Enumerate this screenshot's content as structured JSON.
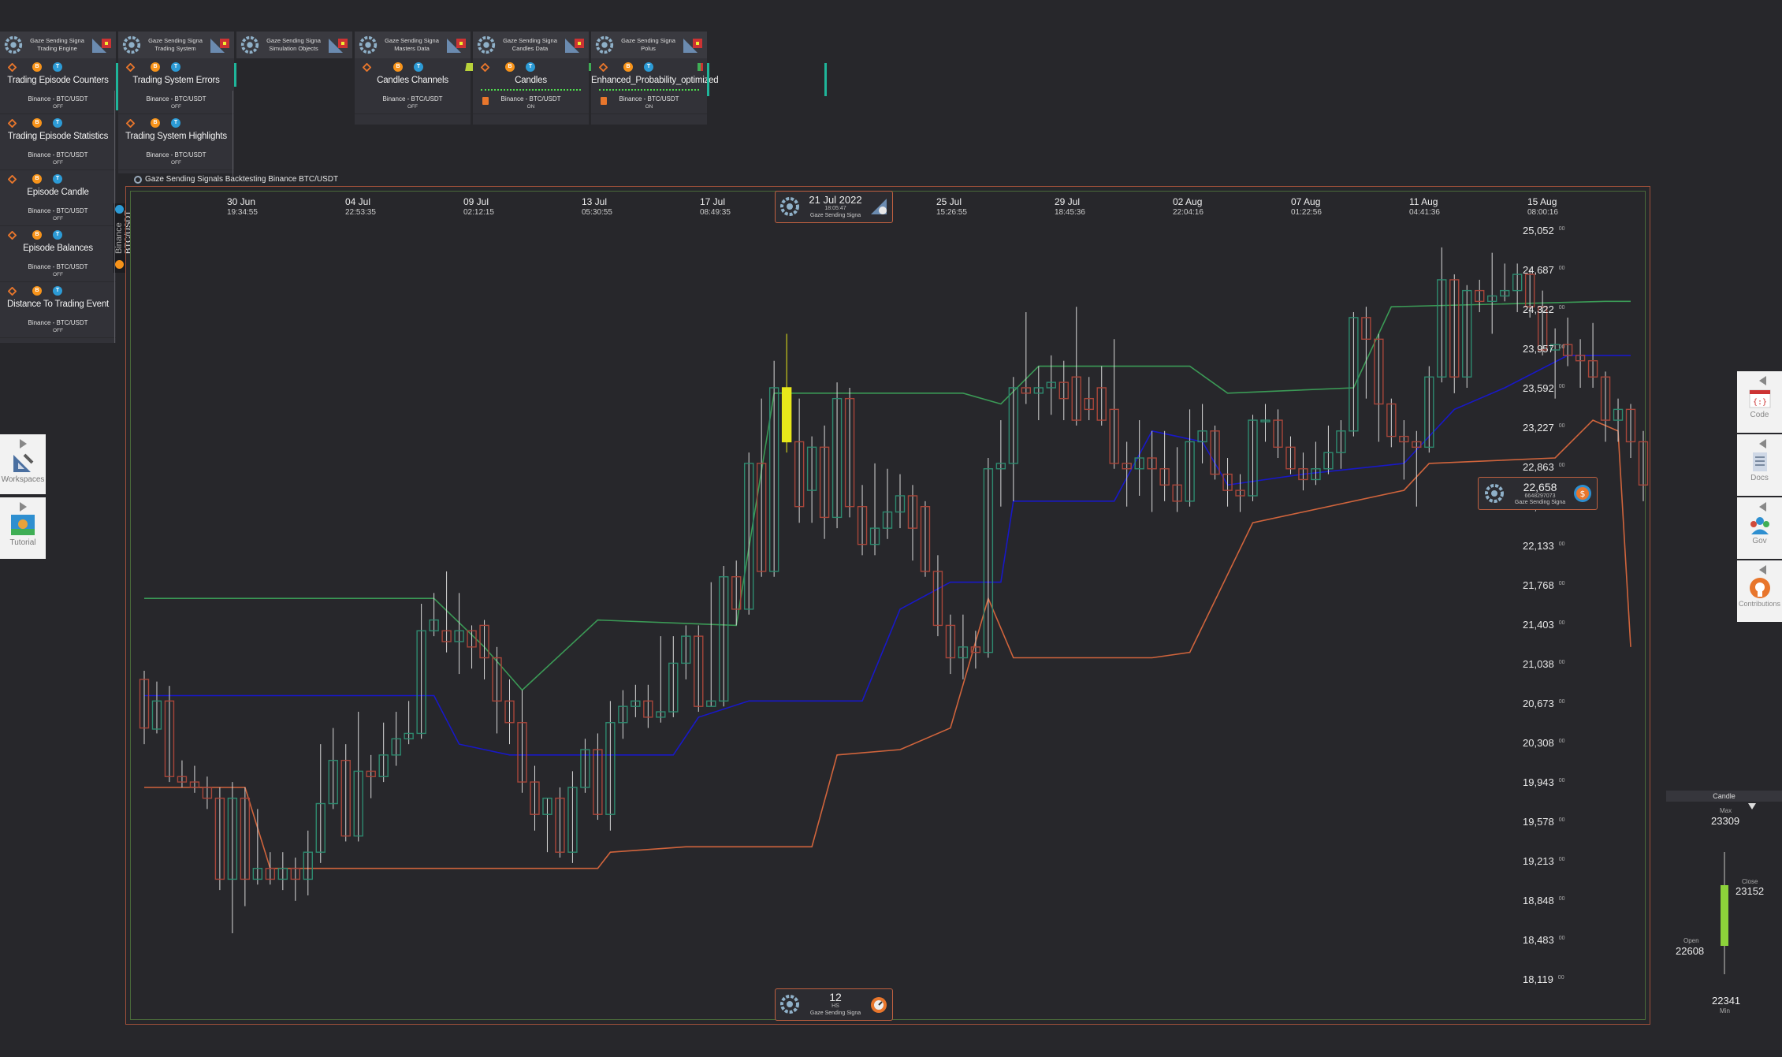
{
  "panels": [
    {
      "head1": "Gaze Sending Signa",
      "head2": "Trading Engine",
      "tiles": [
        {
          "title": "Trading Episode Counters",
          "sub": "Binance - BTC/USDT",
          "status": "OFF"
        },
        {
          "title": "Trading Episode Statistics",
          "sub": "Binance - BTC/USDT",
          "status": "OFF"
        },
        {
          "title": "Episode Candle",
          "sub": "Binance - BTC/USDT",
          "status": "OFF"
        },
        {
          "title": "Episode Balances",
          "sub": "Binance - BTC/USDT",
          "status": "OFF"
        },
        {
          "title": "Distance To Trading Event",
          "sub": "Binance - BTC/USDT",
          "status": "OFF"
        }
      ]
    },
    {
      "head1": "Gaze Sending Signa",
      "head2": "Trading System",
      "tiles": [
        {
          "title": "Trading System Errors",
          "sub": "Binance - BTC/USDT",
          "status": "OFF"
        },
        {
          "title": "Trading System Highlights",
          "sub": "Binance - BTC/USDT",
          "status": "OFF"
        }
      ]
    },
    {
      "head1": "Gaze Sending Signa",
      "head2": "Simulation Objects",
      "tiles": []
    },
    {
      "head1": "Gaze Sending Signa",
      "head2": "Masters Data",
      "tiles": [
        {
          "title": "Candles Channels",
          "sub": "Binance - BTC/USDT",
          "status": "OFF"
        }
      ]
    },
    {
      "head1": "Gaze Sending Signa",
      "head2": "Candles Data",
      "tiles": [
        {
          "title": "Candles",
          "sub": "Binance - BTC/USDT",
          "status": "ON"
        }
      ]
    },
    {
      "head1": "Gaze Sending Signa",
      "head2": "Polus",
      "tiles": [
        {
          "title": "Enhanced_Probability_optimized",
          "sub": "Binance - BTC/USDT",
          "status": "ON"
        }
      ]
    }
  ],
  "layer_title": "Gaze Sending Signals Backtesting Binance BTC/USDT",
  "market_tab": {
    "exchange": "Binance",
    "pair": "BTC/USDT"
  },
  "left_sidebar": [
    {
      "label": "Workspaces"
    },
    {
      "label": "Tutorial"
    }
  ],
  "right_sidebar": [
    {
      "label": "Code"
    },
    {
      "label": "Docs"
    },
    {
      "label": "Gov"
    },
    {
      "label": "Contributions"
    }
  ],
  "time_axis": [
    {
      "date": "30 Jun",
      "time": "19:34:55"
    },
    {
      "date": "04 Jul",
      "time": "22:53:35"
    },
    {
      "date": "09 Jul",
      "time": "02:12:15"
    },
    {
      "date": "13 Jul",
      "time": "05:30:55"
    },
    {
      "date": "17 Jul",
      "time": "08:49:35"
    },
    {
      "date": "25 Jul",
      "time": "15:26:55"
    },
    {
      "date": "29 Jul",
      "time": "18:45:36"
    },
    {
      "date": "02 Aug",
      "time": "22:04:16"
    },
    {
      "date": "07 Aug",
      "time": "01:22:56"
    },
    {
      "date": "11 Aug",
      "time": "04:41:36"
    },
    {
      "date": "15 Aug",
      "time": "08:00:16"
    }
  ],
  "price_axis": [
    "25,052",
    "24,687",
    "24,322",
    "23,957",
    "23,592",
    "23,227",
    "22,863",
    "22,498",
    "22,133",
    "21,768",
    "21,403",
    "21,038",
    "20,673",
    "20,308",
    "19,943",
    "19,578",
    "19,213",
    "18,848",
    "18,483",
    "18,119"
  ],
  "price_axis_suffix": "00",
  "time_badge": {
    "date": "21 Jul 2022",
    "time": "18:05:47",
    "caption": "Gaze Sending Signa"
  },
  "price_badge": {
    "price": "22,658",
    "sub": "6648297073",
    "caption": "Gaze Sending Signa"
  },
  "bottom_badge": {
    "value": "12",
    "unit": "HS",
    "caption": "Gaze Sending Signa"
  },
  "candle_widget": {
    "title": "Candle",
    "max_label": "Max",
    "max": "23309",
    "close_label": "Close",
    "close": "23152",
    "open_label": "Open",
    "open": "22608",
    "min": "22341",
    "min_label": "Min"
  },
  "colors": {
    "up": "#2e8a6f",
    "down": "#a8463a",
    "blue": "#1818c8",
    "orange": "#d0643c",
    "green": "#3b9a56",
    "highlight": "#e8e81a",
    "bg": "#27272b"
  },
  "chart_data": {
    "type": "candlestick",
    "ylim": [
      18119,
      25052
    ],
    "candles": [
      {
        "o": 20900,
        "c": 20450,
        "h": 20980,
        "l": 20300
      },
      {
        "o": 20440,
        "c": 20700,
        "h": 20880,
        "l": 20400
      },
      {
        "o": 20700,
        "c": 20000,
        "h": 20840,
        "l": 19950
      },
      {
        "o": 20000,
        "c": 19950,
        "h": 20150,
        "l": 19900
      },
      {
        "o": 19950,
        "c": 19900,
        "h": 20100,
        "l": 19850
      },
      {
        "o": 19900,
        "c": 19800,
        "h": 20000,
        "l": 19700
      },
      {
        "o": 19800,
        "c": 19050,
        "h": 19900,
        "l": 18950
      },
      {
        "o": 19050,
        "c": 19800,
        "h": 19950,
        "l": 18550
      },
      {
        "o": 19800,
        "c": 19050,
        "h": 19900,
        "l": 18800
      },
      {
        "o": 19050,
        "c": 19150,
        "h": 19700,
        "l": 19000
      },
      {
        "o": 19150,
        "c": 19050,
        "h": 19300,
        "l": 19000
      },
      {
        "o": 19050,
        "c": 19150,
        "h": 19300,
        "l": 18950
      },
      {
        "o": 19150,
        "c": 19050,
        "h": 19250,
        "l": 18850
      },
      {
        "o": 19050,
        "c": 19300,
        "h": 19500,
        "l": 18900
      },
      {
        "o": 19300,
        "c": 19750,
        "h": 20300,
        "l": 19200
      },
      {
        "o": 19750,
        "c": 20150,
        "h": 20450,
        "l": 19700
      },
      {
        "o": 20150,
        "c": 19450,
        "h": 20300,
        "l": 19400
      },
      {
        "o": 19450,
        "c": 20050,
        "h": 20600,
        "l": 19400
      },
      {
        "o": 20050,
        "c": 20000,
        "h": 20200,
        "l": 19800
      },
      {
        "o": 20000,
        "c": 20200,
        "h": 20500,
        "l": 19950
      },
      {
        "o": 20200,
        "c": 20350,
        "h": 20600,
        "l": 20100
      },
      {
        "o": 20350,
        "c": 20400,
        "h": 20700,
        "l": 20300
      },
      {
        "o": 20400,
        "c": 21350,
        "h": 21600,
        "l": 20350
      },
      {
        "o": 21350,
        "c": 21450,
        "h": 21700,
        "l": 21300
      },
      {
        "o": 21350,
        "c": 21250,
        "h": 21900,
        "l": 21150
      },
      {
        "o": 21250,
        "c": 21350,
        "h": 21700,
        "l": 20950
      },
      {
        "o": 21350,
        "c": 21200,
        "h": 21400,
        "l": 21000
      },
      {
        "o": 21400,
        "c": 21100,
        "h": 21450,
        "l": 20900
      },
      {
        "o": 21100,
        "c": 20700,
        "h": 21200,
        "l": 20400
      },
      {
        "o": 20700,
        "c": 20500,
        "h": 20900,
        "l": 20300
      },
      {
        "o": 20500,
        "c": 19950,
        "h": 20800,
        "l": 19850
      },
      {
        "o": 19950,
        "c": 19650,
        "h": 20100,
        "l": 19500
      },
      {
        "o": 19650,
        "c": 19800,
        "h": 19800,
        "l": 19300
      },
      {
        "o": 19800,
        "c": 19300,
        "h": 19900,
        "l": 19250
      },
      {
        "o": 19300,
        "c": 19900,
        "h": 20050,
        "l": 19200
      },
      {
        "o": 19900,
        "c": 20250,
        "h": 20350,
        "l": 19850
      },
      {
        "o": 20250,
        "c": 19650,
        "h": 20400,
        "l": 19600
      },
      {
        "o": 19650,
        "c": 20500,
        "h": 20700,
        "l": 19500
      },
      {
        "o": 20500,
        "c": 20650,
        "h": 20800,
        "l": 20350
      },
      {
        "o": 20650,
        "c": 20700,
        "h": 20850,
        "l": 20550
      },
      {
        "o": 20700,
        "c": 20550,
        "h": 20850,
        "l": 20450
      },
      {
        "o": 20550,
        "c": 20600,
        "h": 21300,
        "l": 20500
      },
      {
        "o": 20600,
        "c": 21050,
        "h": 21300,
        "l": 20550
      },
      {
        "o": 21050,
        "c": 21300,
        "h": 21400,
        "l": 20900
      },
      {
        "o": 21300,
        "c": 20650,
        "h": 21400,
        "l": 20600
      },
      {
        "o": 20650,
        "c": 20700,
        "h": 21800,
        "l": 20650
      },
      {
        "o": 20700,
        "c": 21850,
        "h": 21950,
        "l": 20650
      },
      {
        "o": 21850,
        "c": 21550,
        "h": 22000,
        "l": 21400
      },
      {
        "o": 21550,
        "c": 22900,
        "h": 23000,
        "l": 21500
      },
      {
        "o": 22900,
        "c": 21900,
        "h": 23500,
        "l": 21850
      },
      {
        "o": 21900,
        "c": 23600,
        "h": 23850,
        "l": 21850
      },
      {
        "o": 23600,
        "c": 23100,
        "h": 24100,
        "l": 23000
      },
      {
        "o": 23100,
        "c": 22500,
        "h": 23500,
        "l": 22350
      },
      {
        "o": 22650,
        "c": 23050,
        "h": 23150,
        "l": 22350
      },
      {
        "o": 23050,
        "c": 22400,
        "h": 23250,
        "l": 22200
      },
      {
        "o": 22400,
        "c": 23500,
        "h": 23650,
        "l": 22300
      },
      {
        "o": 23500,
        "c": 22500,
        "h": 23600,
        "l": 22400
      },
      {
        "o": 22500,
        "c": 22150,
        "h": 22700,
        "l": 22050
      },
      {
        "o": 22150,
        "c": 22300,
        "h": 22900,
        "l": 22050
      },
      {
        "o": 22300,
        "c": 22450,
        "h": 22850,
        "l": 22200
      },
      {
        "o": 22450,
        "c": 22600,
        "h": 22800,
        "l": 22300
      },
      {
        "o": 22600,
        "c": 22300,
        "h": 22700,
        "l": 22000
      },
      {
        "o": 22500,
        "c": 21900,
        "h": 22550,
        "l": 21850
      },
      {
        "o": 21900,
        "c": 21400,
        "h": 22050,
        "l": 21300
      },
      {
        "o": 21400,
        "c": 21100,
        "h": 21500,
        "l": 20950
      },
      {
        "o": 21100,
        "c": 21200,
        "h": 21500,
        "l": 20900
      },
      {
        "o": 21200,
        "c": 21150,
        "h": 21350,
        "l": 21000
      },
      {
        "o": 21150,
        "c": 22850,
        "h": 22950,
        "l": 21100
      },
      {
        "o": 22850,
        "c": 22900,
        "h": 23300,
        "l": 22500
      },
      {
        "o": 22900,
        "c": 23600,
        "h": 23700,
        "l": 22550
      },
      {
        "o": 23600,
        "c": 23550,
        "h": 24300,
        "l": 23450
      },
      {
        "o": 23550,
        "c": 23600,
        "h": 23800,
        "l": 23300
      },
      {
        "o": 23600,
        "c": 23650,
        "h": 23900,
        "l": 23350
      },
      {
        "o": 23650,
        "c": 23500,
        "h": 23850,
        "l": 23300
      },
      {
        "o": 23700,
        "c": 23300,
        "h": 24350,
        "l": 23250
      },
      {
        "o": 23500,
        "c": 23400,
        "h": 23700,
        "l": 23300
      },
      {
        "o": 23600,
        "c": 23300,
        "h": 23800,
        "l": 23250
      },
      {
        "o": 23400,
        "c": 22900,
        "h": 24050,
        "l": 22850
      },
      {
        "o": 22900,
        "c": 22850,
        "h": 23100,
        "l": 22500
      },
      {
        "o": 22850,
        "c": 22950,
        "h": 23300,
        "l": 22600
      },
      {
        "o": 22950,
        "c": 22850,
        "h": 23200,
        "l": 22450
      },
      {
        "o": 22850,
        "c": 22700,
        "h": 23200,
        "l": 22550
      },
      {
        "o": 22700,
        "c": 22550,
        "h": 23050,
        "l": 22450
      },
      {
        "o": 22550,
        "c": 23100,
        "h": 23400,
        "l": 22500
      },
      {
        "o": 23100,
        "c": 23200,
        "h": 23450,
        "l": 22900
      },
      {
        "o": 23200,
        "c": 22800,
        "h": 23250,
        "l": 22750
      },
      {
        "o": 22800,
        "c": 22650,
        "h": 22950,
        "l": 22500
      },
      {
        "o": 22650,
        "c": 22600,
        "h": 22800,
        "l": 22450
      },
      {
        "o": 22600,
        "c": 23300,
        "h": 23350,
        "l": 22550
      },
      {
        "o": 23300,
        "c": 23300,
        "h": 23450,
        "l": 23100
      },
      {
        "o": 23300,
        "c": 23050,
        "h": 23400,
        "l": 22950
      },
      {
        "o": 23050,
        "c": 22850,
        "h": 23150,
        "l": 22800
      },
      {
        "o": 22850,
        "c": 22750,
        "h": 23000,
        "l": 22650
      },
      {
        "o": 22750,
        "c": 22850,
        "h": 23100,
        "l": 22700
      },
      {
        "o": 22850,
        "c": 23000,
        "h": 23250,
        "l": 22800
      },
      {
        "o": 23000,
        "c": 23200,
        "h": 23300,
        "l": 22850
      },
      {
        "o": 23200,
        "c": 24250,
        "h": 24300,
        "l": 23150
      },
      {
        "o": 24250,
        "c": 24050,
        "h": 24350,
        "l": 23500
      },
      {
        "o": 24050,
        "c": 23450,
        "h": 24100,
        "l": 23100
      },
      {
        "o": 23450,
        "c": 23150,
        "h": 23500,
        "l": 23050
      },
      {
        "o": 23150,
        "c": 23100,
        "h": 23300,
        "l": 22750
      },
      {
        "o": 23100,
        "c": 23050,
        "h": 23200,
        "l": 22500
      },
      {
        "o": 23050,
        "c": 23700,
        "h": 23800,
        "l": 23000
      },
      {
        "o": 23700,
        "c": 24600,
        "h": 24900,
        "l": 23650
      },
      {
        "o": 24600,
        "c": 23700,
        "h": 24650,
        "l": 23550
      },
      {
        "o": 23700,
        "c": 24500,
        "h": 24550,
        "l": 23600
      },
      {
        "o": 24500,
        "c": 24400,
        "h": 24600,
        "l": 24300
      },
      {
        "o": 24400,
        "c": 24450,
        "h": 24850,
        "l": 24100
      },
      {
        "o": 24450,
        "c": 24500,
        "h": 24750,
        "l": 24400
      },
      {
        "o": 24500,
        "c": 24650,
        "h": 24750,
        "l": 24300
      },
      {
        "o": 24650,
        "c": 24350,
        "h": 24700,
        "l": 24250
      },
      {
        "o": 24350,
        "c": 23950,
        "h": 24500,
        "l": 23900
      },
      {
        "o": 23950,
        "c": 24000,
        "h": 24150,
        "l": 23500
      },
      {
        "o": 24000,
        "c": 23900,
        "h": 24250,
        "l": 23800
      },
      {
        "o": 23900,
        "c": 23850,
        "h": 24050,
        "l": 23600
      },
      {
        "o": 23850,
        "c": 23700,
        "h": 24200,
        "l": 23600
      },
      {
        "o": 23700,
        "c": 23300,
        "h": 23750,
        "l": 23100
      },
      {
        "o": 23300,
        "c": 23400,
        "h": 23500,
        "l": 23100
      },
      {
        "o": 23400,
        "c": 23100,
        "h": 23450,
        "l": 22950
      },
      {
        "o": 23100,
        "c": 22700,
        "h": 23200,
        "l": 22550
      }
    ],
    "highlight_index": 51,
    "lines": [
      {
        "name": "channel_top",
        "color": "#3b9a56",
        "points": [
          [
            0,
            21650
          ],
          [
            23,
            21650
          ],
          [
            27,
            21200
          ],
          [
            30,
            20800
          ],
          [
            36,
            21450
          ],
          [
            47,
            21400
          ],
          [
            50,
            23550
          ],
          [
            65,
            23550
          ],
          [
            68,
            23450
          ],
          [
            71,
            23800
          ],
          [
            83,
            23800
          ],
          [
            86,
            23550
          ],
          [
            96,
            23600
          ],
          [
            99,
            24350
          ],
          [
            116,
            24400
          ],
          [
            118,
            24400
          ]
        ]
      },
      {
        "name": "channel_mid",
        "color": "#1818c8",
        "points": [
          [
            0,
            20750
          ],
          [
            23,
            20750
          ],
          [
            25,
            20300
          ],
          [
            29,
            20200
          ],
          [
            42,
            20200
          ],
          [
            44,
            20550
          ],
          [
            48,
            20700
          ],
          [
            57,
            20700
          ],
          [
            60,
            21550
          ],
          [
            64,
            21800
          ],
          [
            68,
            21800
          ],
          [
            69,
            22550
          ],
          [
            77,
            22550
          ],
          [
            80,
            23200
          ],
          [
            84,
            23100
          ],
          [
            86,
            22700
          ],
          [
            92,
            22800
          ],
          [
            100,
            22900
          ],
          [
            104,
            23400
          ],
          [
            108,
            23600
          ],
          [
            113,
            23900
          ],
          [
            118,
            23900
          ]
        ]
      },
      {
        "name": "channel_bottom",
        "color": "#d0643c",
        "points": [
          [
            0,
            19900
          ],
          [
            8,
            19900
          ],
          [
            10,
            19150
          ],
          [
            36,
            19150
          ],
          [
            37,
            19300
          ],
          [
            43,
            19350
          ],
          [
            53,
            19350
          ],
          [
            55,
            20200
          ],
          [
            60,
            20250
          ],
          [
            64,
            20450
          ],
          [
            67,
            21650
          ],
          [
            69,
            21100
          ],
          [
            80,
            21100
          ],
          [
            83,
            21150
          ],
          [
            88,
            22350
          ],
          [
            100,
            22650
          ],
          [
            102,
            22900
          ],
          [
            112,
            22950
          ],
          [
            115,
            23300
          ],
          [
            117,
            23200
          ],
          [
            118,
            21200
          ]
        ]
      }
    ]
  }
}
